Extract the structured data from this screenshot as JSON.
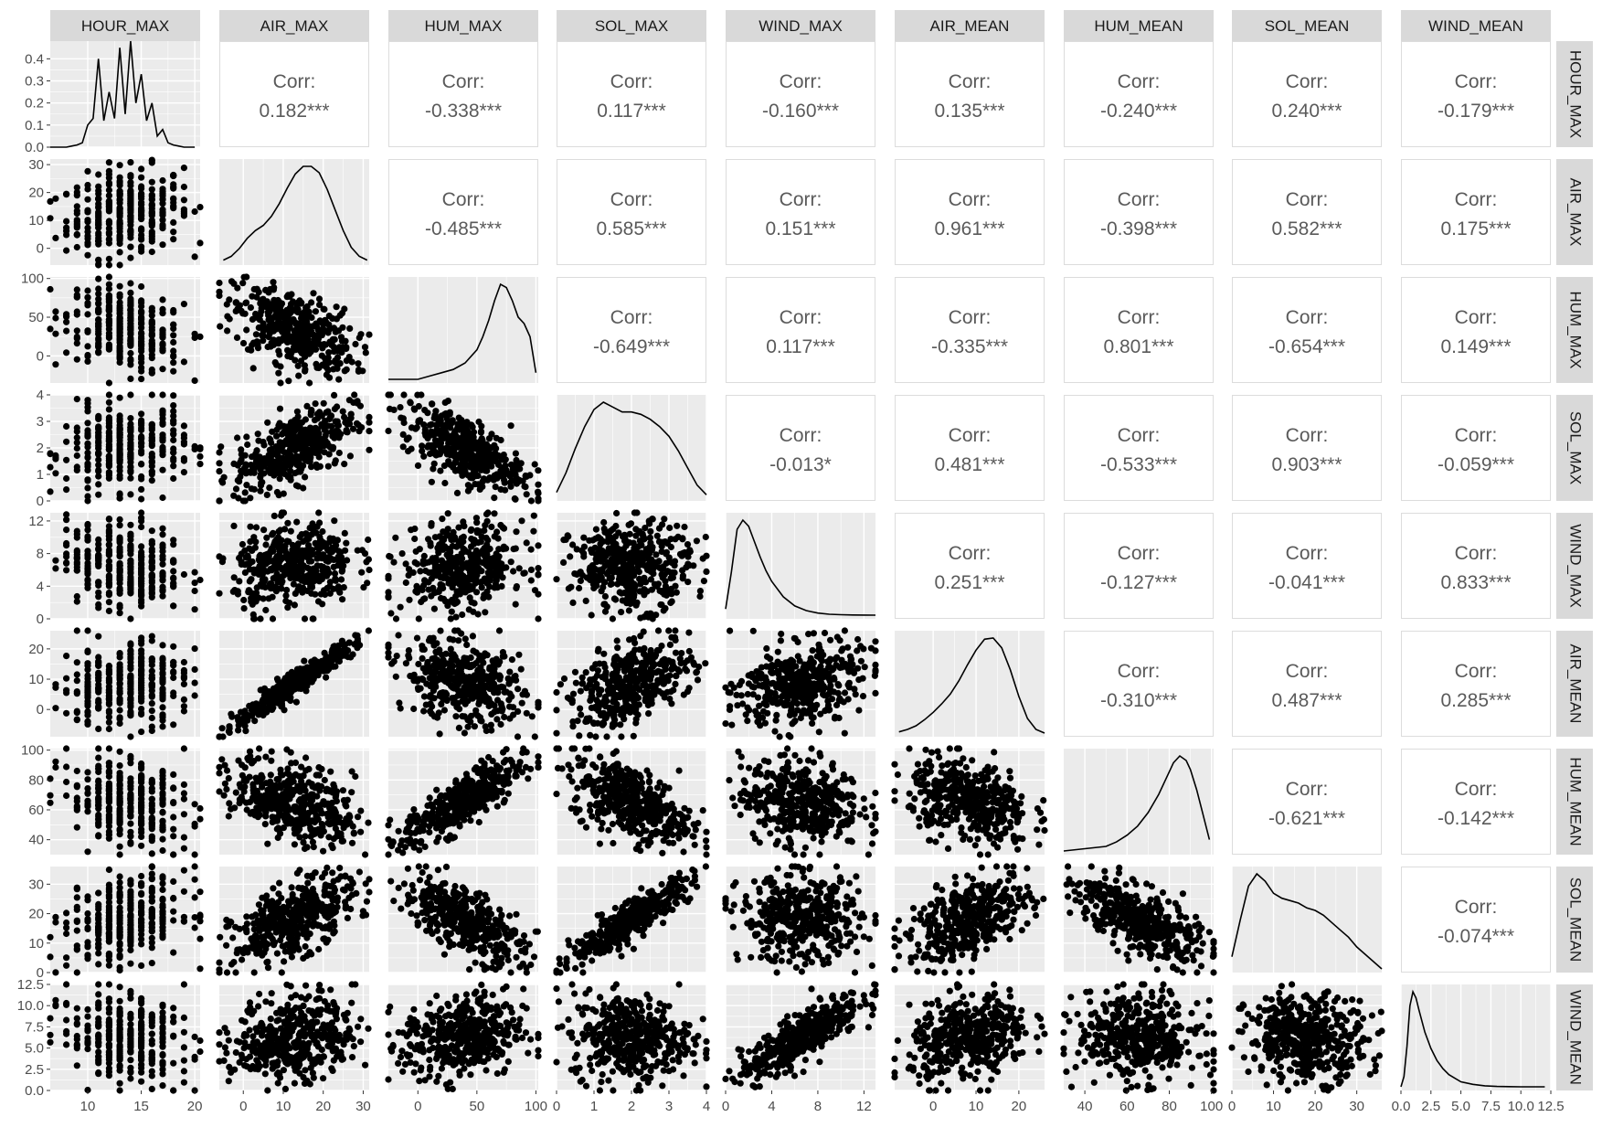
{
  "chart_data": {
    "type": "scatter",
    "variables": [
      "HOUR_MAX",
      "AIR_MAX",
      "HUM_MAX",
      "SOL_MAX",
      "WIND_MAX",
      "AIR_MEAN",
      "HUM_MEAN",
      "SOL_MEAN",
      "WIND_MEAN"
    ],
    "x_ticks": [
      [
        10,
        15,
        20
      ],
      [
        0,
        10,
        20,
        30
      ],
      [
        0,
        50,
        100
      ],
      [
        0,
        1,
        2,
        3,
        4
      ],
      [
        0,
        4,
        8,
        12
      ],
      [
        0,
        10,
        20
      ],
      [
        40,
        60,
        80,
        100
      ],
      [
        0,
        10,
        20,
        30
      ],
      [
        0.0,
        2.5,
        5.0,
        7.5,
        10.0,
        12.5
      ]
    ],
    "x_tick_labels": [
      [
        "10",
        "15",
        "20"
      ],
      [
        "0",
        "10",
        "20",
        "30"
      ],
      [
        "0",
        "50",
        "100"
      ],
      [
        "0",
        "1",
        "2",
        "3",
        "4"
      ],
      [
        "0",
        "4",
        "8",
        "12"
      ],
      [
        "0",
        "10",
        "20"
      ],
      [
        "40",
        "60",
        "80",
        "100"
      ],
      [
        "0",
        "10",
        "20",
        "30"
      ],
      [
        "0.0",
        "2.5",
        "5.0",
        "7.5",
        "10.0",
        "12.5"
      ]
    ],
    "x_ranges": [
      [
        6.5,
        20.5
      ],
      [
        -6,
        31.5
      ],
      [
        -25,
        102
      ],
      [
        0,
        4
      ],
      [
        0,
        13
      ],
      [
        -9,
        26
      ],
      [
        30,
        101
      ],
      [
        0,
        36
      ],
      [
        0,
        12.5
      ]
    ],
    "y_ticks": [
      [
        0.0,
        0.1,
        0.2,
        0.3,
        0.4
      ],
      [
        0,
        10,
        20,
        30
      ],
      [
        0,
        50,
        100
      ],
      [
        0,
        1,
        2,
        3,
        4
      ],
      [
        0,
        4,
        8,
        12
      ],
      [
        0,
        10,
        20
      ],
      [
        40,
        60,
        80,
        100
      ],
      [
        0,
        10,
        20,
        30
      ],
      [
        0.0,
        2.5,
        5.0,
        7.5,
        10.0,
        12.5
      ]
    ],
    "y_tick_labels": [
      [
        "0.0",
        "0.1",
        "0.2",
        "0.3",
        "0.4"
      ],
      [
        "0",
        "10",
        "20",
        "30"
      ],
      [
        "0",
        "50",
        "100"
      ],
      [
        "0",
        "1",
        "2",
        "3",
        "4"
      ],
      [
        "0",
        "4",
        "8",
        "12"
      ],
      [
        "0",
        "10",
        "20"
      ],
      [
        "40",
        "60",
        "80",
        "100"
      ],
      [
        "0",
        "10",
        "20",
        "30"
      ],
      [
        "0.0",
        "2.5",
        "5.0",
        "7.5",
        "10.0",
        "12.5"
      ]
    ],
    "y_ranges": [
      [
        0,
        0.48
      ],
      [
        -6,
        32
      ],
      [
        -35,
        102
      ],
      [
        0,
        4
      ],
      [
        0,
        13
      ],
      [
        -9,
        26
      ],
      [
        30,
        101
      ],
      [
        0,
        36
      ],
      [
        0,
        12.5
      ]
    ],
    "correlation_label": "Corr:",
    "correlations": [
      {
        "row": "HOUR_MAX",
        "col": "AIR_MAX",
        "text": "0.182***"
      },
      {
        "row": "HOUR_MAX",
        "col": "HUM_MAX",
        "text": "-0.338***"
      },
      {
        "row": "HOUR_MAX",
        "col": "SOL_MAX",
        "text": "0.117***"
      },
      {
        "row": "HOUR_MAX",
        "col": "WIND_MAX",
        "text": "-0.160***"
      },
      {
        "row": "HOUR_MAX",
        "col": "AIR_MEAN",
        "text": "0.135***"
      },
      {
        "row": "HOUR_MAX",
        "col": "HUM_MEAN",
        "text": "-0.240***"
      },
      {
        "row": "HOUR_MAX",
        "col": "SOL_MEAN",
        "text": "0.240***"
      },
      {
        "row": "HOUR_MAX",
        "col": "WIND_MEAN",
        "text": "-0.179***"
      },
      {
        "row": "AIR_MAX",
        "col": "HUM_MAX",
        "text": "-0.485***"
      },
      {
        "row": "AIR_MAX",
        "col": "SOL_MAX",
        "text": "0.585***"
      },
      {
        "row": "AIR_MAX",
        "col": "WIND_MAX",
        "text": "0.151***"
      },
      {
        "row": "AIR_MAX",
        "col": "AIR_MEAN",
        "text": "0.961***"
      },
      {
        "row": "AIR_MAX",
        "col": "HUM_MEAN",
        "text": "-0.398***"
      },
      {
        "row": "AIR_MAX",
        "col": "SOL_MEAN",
        "text": "0.582***"
      },
      {
        "row": "AIR_MAX",
        "col": "WIND_MEAN",
        "text": "0.175***"
      },
      {
        "row": "HUM_MAX",
        "col": "SOL_MAX",
        "text": "-0.649***"
      },
      {
        "row": "HUM_MAX",
        "col": "WIND_MAX",
        "text": "0.117***"
      },
      {
        "row": "HUM_MAX",
        "col": "AIR_MEAN",
        "text": "-0.335***"
      },
      {
        "row": "HUM_MAX",
        "col": "HUM_MEAN",
        "text": "0.801***"
      },
      {
        "row": "HUM_MAX",
        "col": "SOL_MEAN",
        "text": "-0.654***"
      },
      {
        "row": "HUM_MAX",
        "col": "WIND_MEAN",
        "text": "0.149***"
      },
      {
        "row": "SOL_MAX",
        "col": "WIND_MAX",
        "text": "-0.013*"
      },
      {
        "row": "SOL_MAX",
        "col": "AIR_MEAN",
        "text": "0.481***"
      },
      {
        "row": "SOL_MAX",
        "col": "HUM_MEAN",
        "text": "-0.533***"
      },
      {
        "row": "SOL_MAX",
        "col": "SOL_MEAN",
        "text": "0.903***"
      },
      {
        "row": "SOL_MAX",
        "col": "WIND_MEAN",
        "text": "-0.059***"
      },
      {
        "row": "WIND_MAX",
        "col": "AIR_MEAN",
        "text": "0.251***"
      },
      {
        "row": "WIND_MAX",
        "col": "HUM_MEAN",
        "text": "-0.127***"
      },
      {
        "row": "WIND_MAX",
        "col": "SOL_MEAN",
        "text": "-0.041***"
      },
      {
        "row": "WIND_MAX",
        "col": "WIND_MEAN",
        "text": "0.833***"
      },
      {
        "row": "AIR_MEAN",
        "col": "HUM_MEAN",
        "text": "-0.310***"
      },
      {
        "row": "AIR_MEAN",
        "col": "SOL_MEAN",
        "text": "0.487***"
      },
      {
        "row": "AIR_MEAN",
        "col": "WIND_MEAN",
        "text": "0.285***"
      },
      {
        "row": "HUM_MEAN",
        "col": "SOL_MEAN",
        "text": "-0.621***"
      },
      {
        "row": "HUM_MEAN",
        "col": "WIND_MEAN",
        "text": "-0.142***"
      },
      {
        "row": "SOL_MEAN",
        "col": "WIND_MEAN",
        "text": "-0.074***"
      }
    ],
    "density_curves": [
      {
        "variable": "HOUR_MAX",
        "x": [
          6.5,
          7.0,
          7.5,
          8.0,
          8.5,
          9.0,
          9.5,
          10.0,
          10.5,
          11.0,
          11.5,
          12.0,
          12.5,
          13.0,
          13.5,
          14.0,
          14.5,
          15.0,
          15.5,
          16.0,
          16.5,
          17.0,
          17.5,
          18.0,
          18.5,
          19.0,
          19.5,
          20.0
        ],
        "y": [
          0.0,
          0.0,
          0.0,
          0.0,
          0.005,
          0.01,
          0.02,
          0.1,
          0.13,
          0.4,
          0.12,
          0.25,
          0.13,
          0.45,
          0.15,
          0.48,
          0.2,
          0.33,
          0.12,
          0.2,
          0.05,
          0.08,
          0.02,
          0.01,
          0.005,
          0.0,
          0.0,
          0.0
        ]
      },
      {
        "variable": "AIR_MAX",
        "x": [
          -5,
          -3,
          -1,
          1,
          3,
          5,
          7,
          9,
          11,
          13,
          15,
          17,
          19,
          21,
          23,
          25,
          27,
          29,
          31
        ],
        "y": [
          0.001,
          0.004,
          0.01,
          0.018,
          0.024,
          0.028,
          0.035,
          0.045,
          0.057,
          0.068,
          0.074,
          0.074,
          0.069,
          0.056,
          0.04,
          0.024,
          0.011,
          0.004,
          0.001
        ]
      },
      {
        "variable": "HUM_MAX",
        "x": [
          -25,
          -10,
          0,
          10,
          20,
          30,
          40,
          50,
          55,
          60,
          65,
          70,
          75,
          80,
          85,
          90,
          95,
          100
        ],
        "y": [
          0.0,
          0.0,
          0.0,
          0.001,
          0.002,
          0.003,
          0.005,
          0.009,
          0.013,
          0.018,
          0.024,
          0.029,
          0.028,
          0.024,
          0.019,
          0.017,
          0.013,
          0.002
        ]
      },
      {
        "variable": "SOL_MAX",
        "x": [
          0.0,
          0.25,
          0.5,
          0.75,
          1.0,
          1.25,
          1.5,
          1.75,
          2.0,
          2.25,
          2.5,
          2.75,
          3.0,
          3.25,
          3.5,
          3.75,
          4.0
        ],
        "y": [
          0.02,
          0.1,
          0.2,
          0.29,
          0.36,
          0.39,
          0.37,
          0.35,
          0.35,
          0.34,
          0.32,
          0.29,
          0.25,
          0.19,
          0.12,
          0.05,
          0.01
        ]
      },
      {
        "variable": "WIND_MAX",
        "x": [
          0.0,
          0.5,
          1.0,
          1.5,
          2.0,
          2.5,
          3.0,
          3.5,
          4.0,
          5.0,
          6.0,
          7.0,
          8.0,
          9.0,
          10.0,
          11.0,
          12.0,
          13.0
        ],
        "y": [
          0.02,
          0.14,
          0.28,
          0.31,
          0.29,
          0.24,
          0.19,
          0.145,
          0.11,
          0.06,
          0.03,
          0.015,
          0.007,
          0.003,
          0.0015,
          0.0007,
          0.0003,
          0.0
        ]
      },
      {
        "variable": "AIR_MEAN",
        "x": [
          -8,
          -6,
          -4,
          -2,
          0,
          2,
          4,
          6,
          8,
          10,
          12,
          14,
          16,
          18,
          20,
          22,
          24,
          26
        ],
        "y": [
          0.001,
          0.003,
          0.006,
          0.011,
          0.017,
          0.024,
          0.032,
          0.043,
          0.056,
          0.068,
          0.077,
          0.078,
          0.07,
          0.052,
          0.03,
          0.012,
          0.003,
          0.0
        ]
      },
      {
        "variable": "HUM_MEAN",
        "x": [
          30,
          40,
          50,
          55,
          60,
          65,
          70,
          75,
          80,
          82,
          85,
          88,
          90,
          93,
          96,
          99
        ],
        "y": [
          0.0,
          0.001,
          0.002,
          0.004,
          0.007,
          0.011,
          0.017,
          0.025,
          0.035,
          0.039,
          0.042,
          0.04,
          0.036,
          0.027,
          0.016,
          0.005
        ]
      },
      {
        "variable": "SOL_MEAN",
        "x": [
          0,
          2,
          4,
          6,
          8,
          10,
          12,
          14,
          16,
          18,
          20,
          22,
          24,
          26,
          28,
          30,
          32,
          34,
          36
        ],
        "y": [
          0.005,
          0.02,
          0.034,
          0.039,
          0.036,
          0.031,
          0.029,
          0.028,
          0.027,
          0.025,
          0.024,
          0.022,
          0.019,
          0.016,
          0.013,
          0.009,
          0.006,
          0.003,
          0.0
        ]
      },
      {
        "variable": "WIND_MEAN",
        "x": [
          0.0,
          0.25,
          0.5,
          0.75,
          1.0,
          1.25,
          1.5,
          2.0,
          2.5,
          3.0,
          3.5,
          4.0,
          5.0,
          6.0,
          7.0,
          8.0,
          9.0,
          10.0,
          11.0,
          12.0
        ],
        "y": [
          0.0,
          0.05,
          0.2,
          0.4,
          0.47,
          0.44,
          0.38,
          0.27,
          0.19,
          0.13,
          0.09,
          0.06,
          0.025,
          0.012,
          0.005,
          0.002,
          0.001,
          0.0,
          0.0,
          0.0
        ]
      }
    ],
    "scatter_panels": "lower triangle: pairwise scatter plots of all 9 variables (black points, grey panel background)",
    "grid": true,
    "legend": "none",
    "colors": {
      "panel_bg": "#ebebeb",
      "strip_bg": "#d9d9d9",
      "point": "#000000",
      "corr_text": "#5a5a5a",
      "tick_text": "#4d4d4d"
    }
  }
}
